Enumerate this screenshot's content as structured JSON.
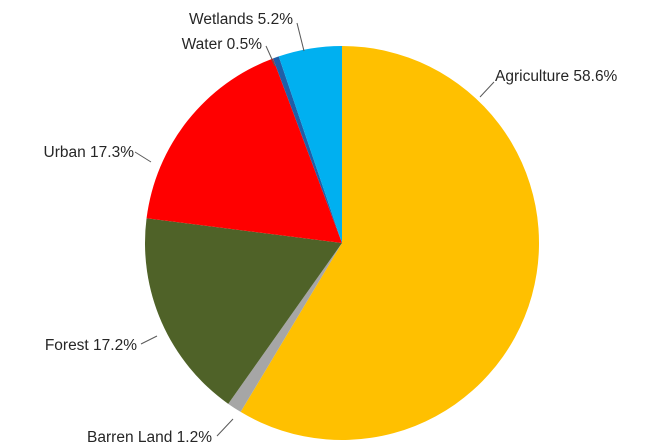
{
  "chart_data": {
    "type": "pie",
    "title": "",
    "start_angle_deg": 0,
    "direction": "clockwise",
    "slices": [
      {
        "name": "Agriculture",
        "value": 58.6,
        "label": "Agriculture 58.6%",
        "color": "#FFC000"
      },
      {
        "name": "Barren Land",
        "value": 1.2,
        "label": "Barren Land 1.2%",
        "color": "#A6A6A6"
      },
      {
        "name": "Forest",
        "value": 17.2,
        "label": "Forest 17.2%",
        "color": "#4F6228"
      },
      {
        "name": "Urban",
        "value": 17.3,
        "label": "Urban 17.3%",
        "color": "#FF0000"
      },
      {
        "name": "Water",
        "value": 0.5,
        "label": "Water 0.5%",
        "color": "#1F5FA8"
      },
      {
        "name": "Wetlands",
        "value": 5.2,
        "label": "Wetlands 5.2%",
        "color": "#00B0F0"
      }
    ],
    "legend": "none",
    "data_labels": "outside with leader lines"
  }
}
